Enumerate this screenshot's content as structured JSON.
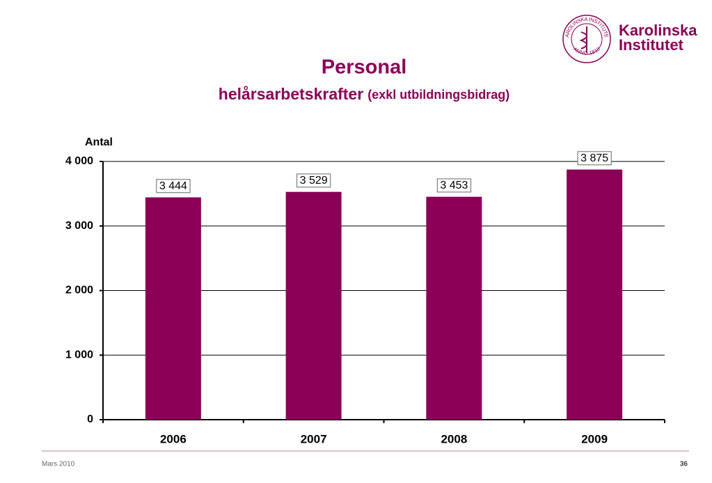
{
  "chart_data": {
    "type": "bar",
    "title": "Personal",
    "subtitle": "helårsarbetskrafter",
    "subtitle_note": "(exkl utbildningsbidrag)",
    "y_label": "Antal",
    "categories": [
      "2006",
      "2007",
      "2008",
      "2009"
    ],
    "values": [
      3444,
      3529,
      3453,
      3875
    ],
    "value_labels": [
      "3 444",
      "3 529",
      "3 453",
      "3 875"
    ],
    "color": "#8b0057",
    "ylim": [
      0,
      4000
    ],
    "yticks": [
      0,
      {
        "value": 1000,
        "label": "1 000"
      },
      {
        "value": 2000,
        "label": "2 000"
      },
      {
        "value": 3000,
        "label": "3 000"
      },
      {
        "value": 4000,
        "label": "4 000"
      }
    ],
    "grid": true
  },
  "logo": {
    "name_lines": [
      "Karolinska",
      "Institutet"
    ],
    "seal_text": [
      "KAROLINSKA INSTITUTET",
      "ANNO 1810"
    ]
  },
  "footer": {
    "date": "Mars 2010",
    "page": "36"
  }
}
